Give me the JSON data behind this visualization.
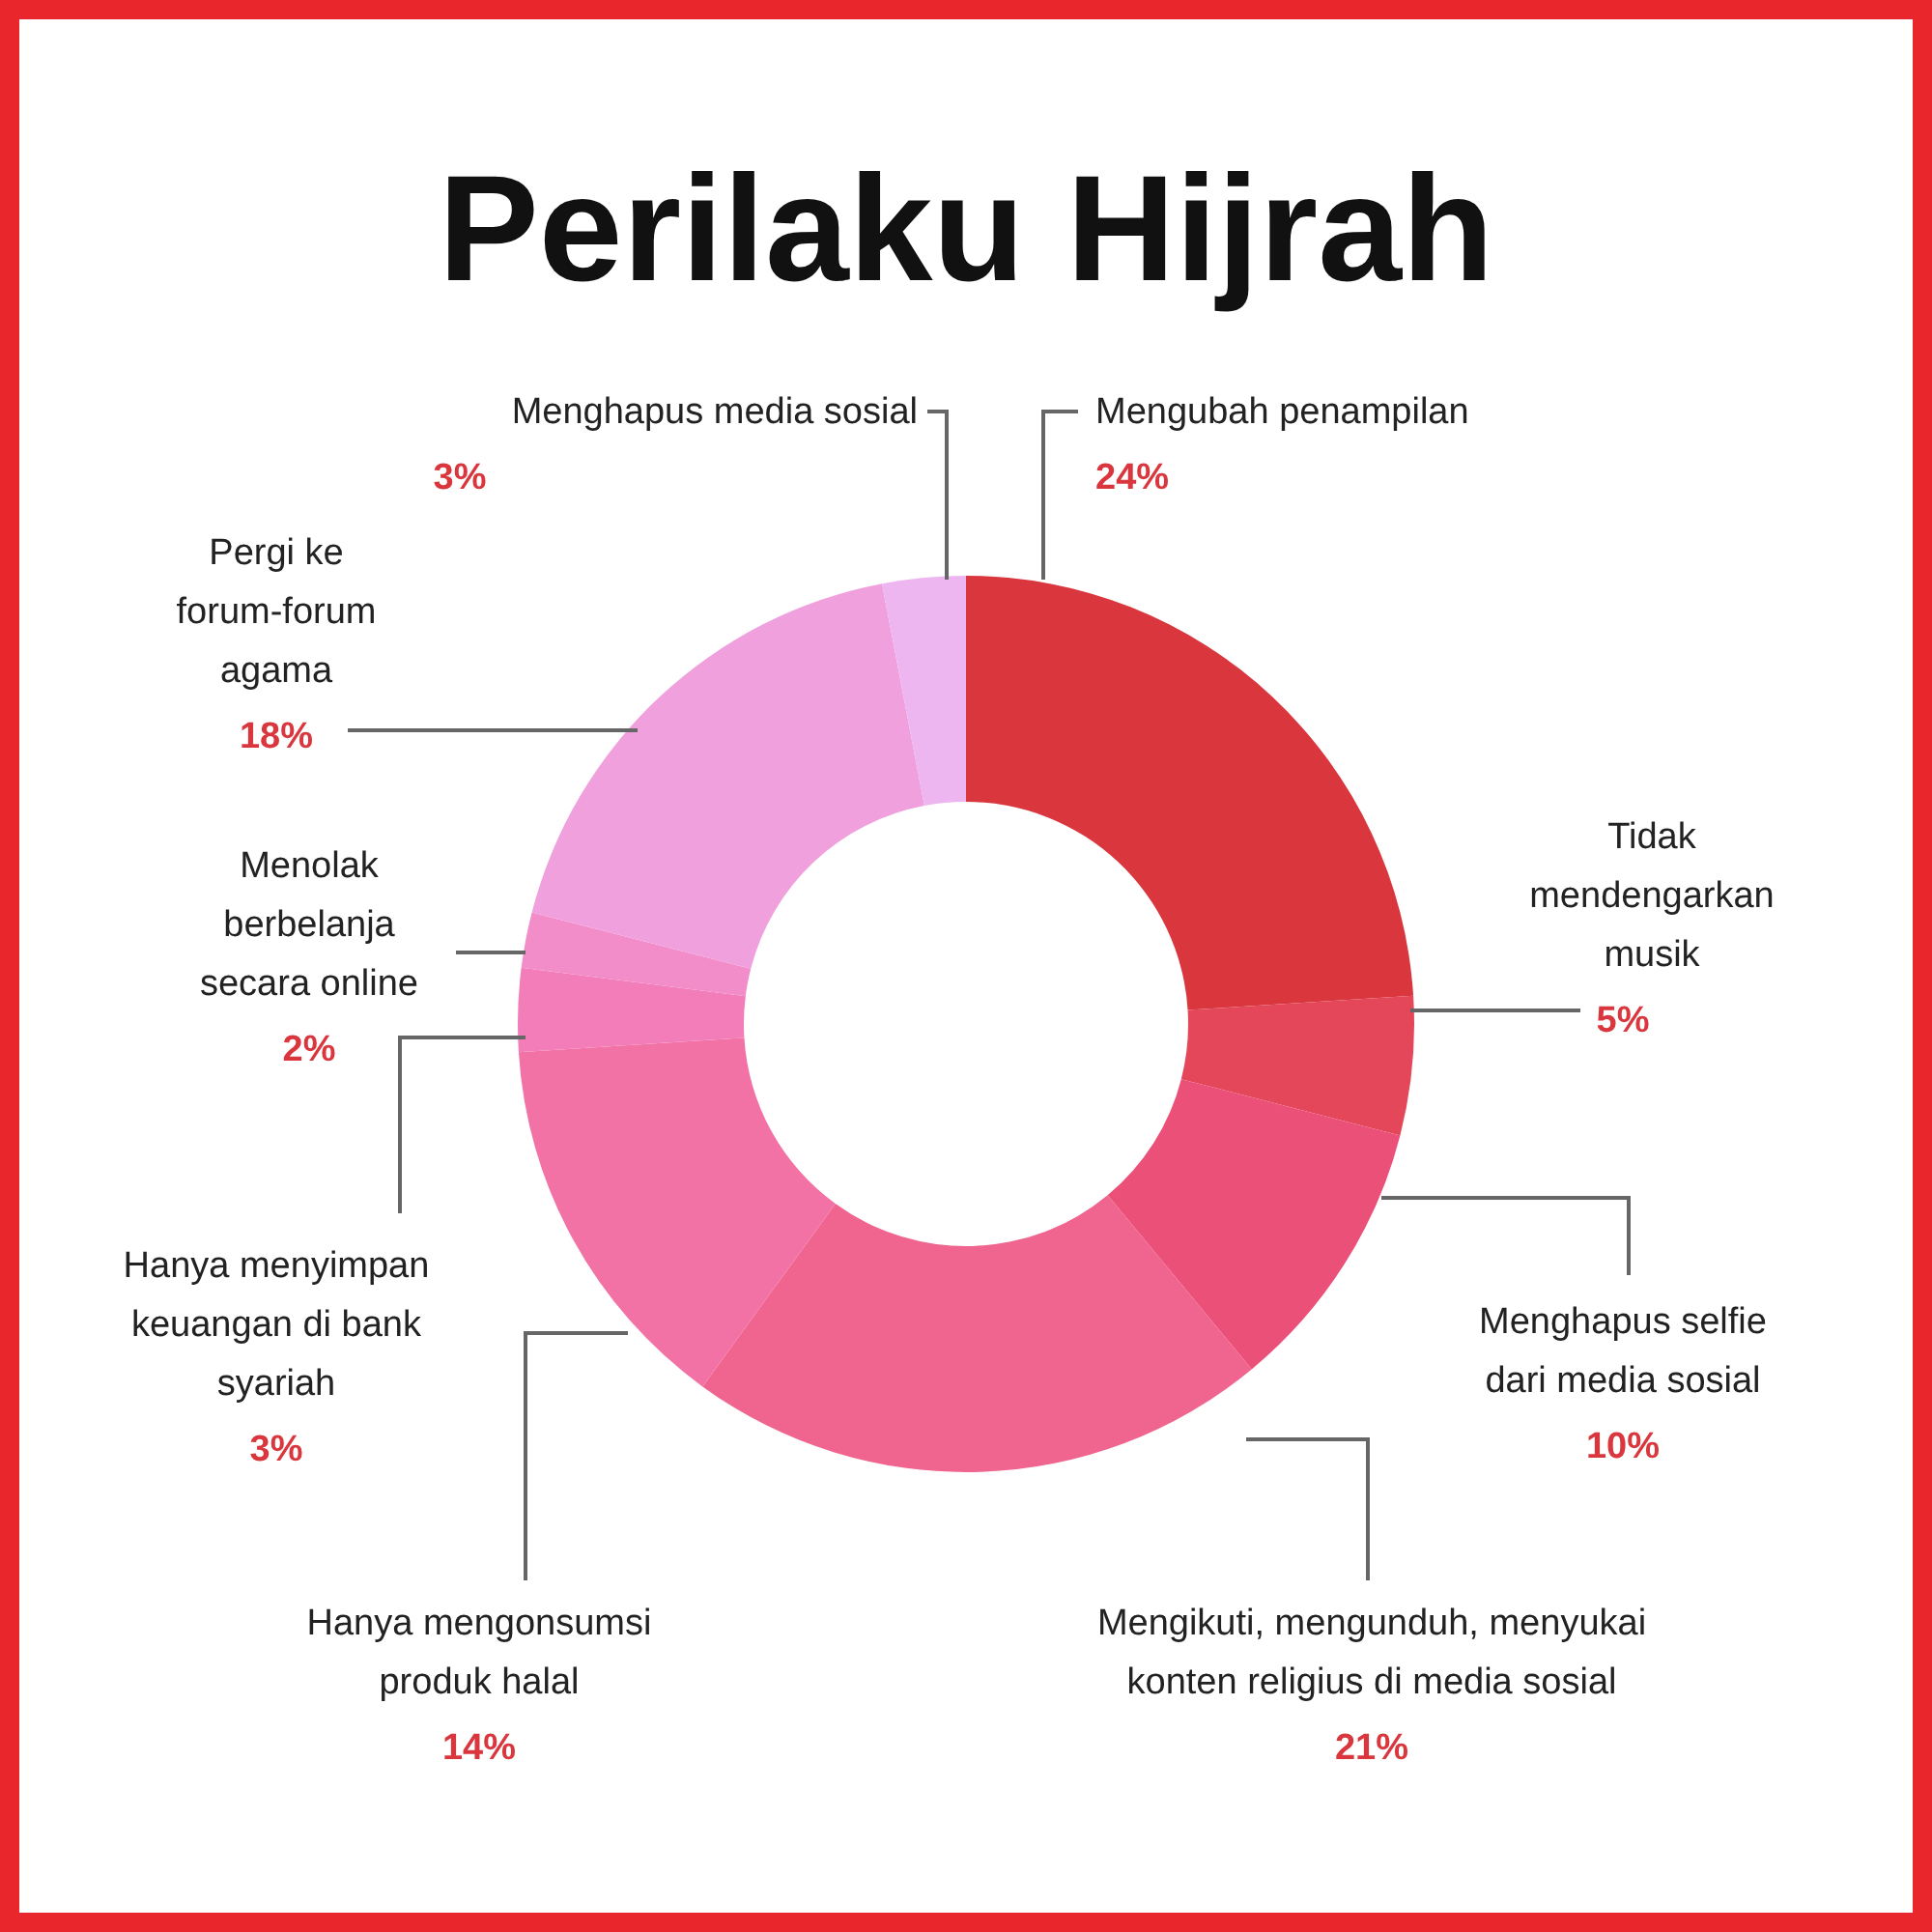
{
  "chart_data": {
    "type": "donut",
    "title": "Perilaku Hijrah",
    "categories": [
      "Mengubah penampilan",
      "Tidak mendengarkan musik",
      "Menghapus selfie dari media sosial",
      "Mengikuti, mengunduh, menyukai konten religius di media sosial",
      "Hanya mengonsumsi produk halal",
      "Hanya menyimpan keuangan di bank syariah",
      "Menolak berbelanja secara online",
      "Pergi ke forum-forum agama",
      "Menghapus media sosial"
    ],
    "values": [
      24,
      5,
      10,
      21,
      14,
      3,
      2,
      18,
      3
    ],
    "colors": [
      "#d9363d",
      "#e4475a",
      "#eb5079",
      "#f0658f",
      "#f272a6",
      "#f27db8",
      "#f28dc9",
      "#f0a1dd",
      "#eeb6f1"
    ],
    "value_labels": [
      "24%",
      "5%",
      "10%",
      "21%",
      "14%",
      "3%",
      "2%",
      "18%",
      "3%"
    ]
  }
}
